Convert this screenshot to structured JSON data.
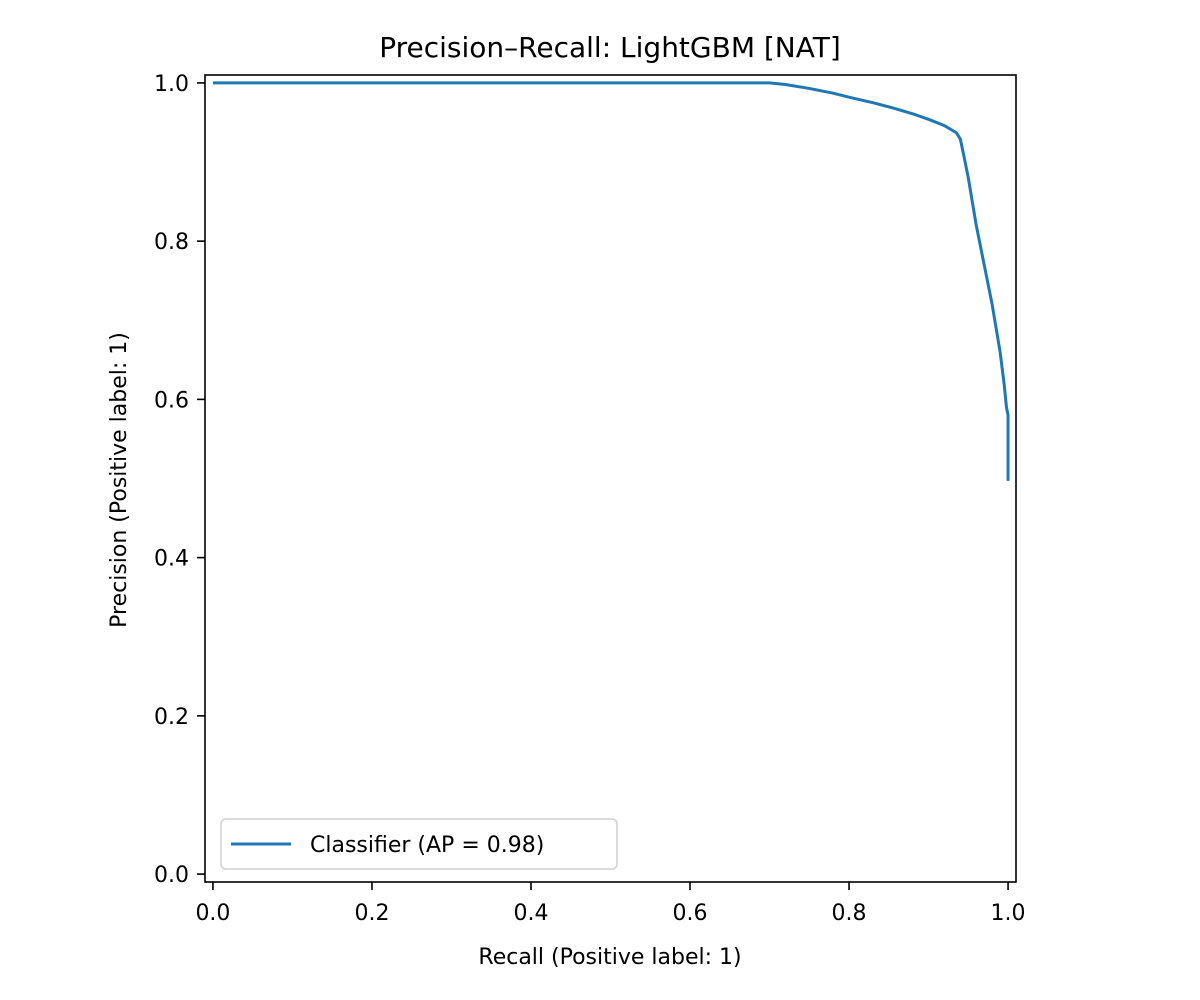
{
  "chart_data": {
    "type": "line",
    "title": "Precision–Recall: LightGBM [NAT]",
    "xlabel": "Recall (Positive label: 1)",
    "ylabel": "Precision (Positive label: 1)",
    "xlim": [
      -0.01,
      1.01
    ],
    "ylim": [
      -0.01,
      1.01
    ],
    "xticks": [
      0.0,
      0.2,
      0.4,
      0.6,
      0.8,
      1.0
    ],
    "xtick_labels": [
      "0.0",
      "0.2",
      "0.4",
      "0.6",
      "0.8",
      "1.0"
    ],
    "yticks": [
      0.0,
      0.2,
      0.4,
      0.6,
      0.8,
      1.0
    ],
    "ytick_labels": [
      "0.0",
      "0.2",
      "0.4",
      "0.6",
      "0.8",
      "1.0"
    ],
    "grid": false,
    "legend_position": "lower-left",
    "series": [
      {
        "name": "Classifier (AP = 0.98)",
        "color": "#1f77b4",
        "x": [
          0.0,
          0.1,
          0.2,
          0.3,
          0.4,
          0.5,
          0.6,
          0.7,
          0.72,
          0.75,
          0.78,
          0.8,
          0.83,
          0.86,
          0.88,
          0.9,
          0.92,
          0.93,
          0.935,
          0.94,
          0.945,
          0.95,
          0.96,
          0.97,
          0.98,
          0.99,
          0.995,
          0.998,
          1.0,
          1.0
        ],
        "y": [
          1.0,
          1.0,
          1.0,
          1.0,
          1.0,
          1.0,
          1.0,
          1.0,
          0.998,
          0.993,
          0.987,
          0.982,
          0.975,
          0.967,
          0.961,
          0.954,
          0.946,
          0.94,
          0.937,
          0.929,
          0.905,
          0.88,
          0.82,
          0.77,
          0.72,
          0.66,
          0.62,
          0.59,
          0.58,
          0.497
        ]
      }
    ]
  }
}
